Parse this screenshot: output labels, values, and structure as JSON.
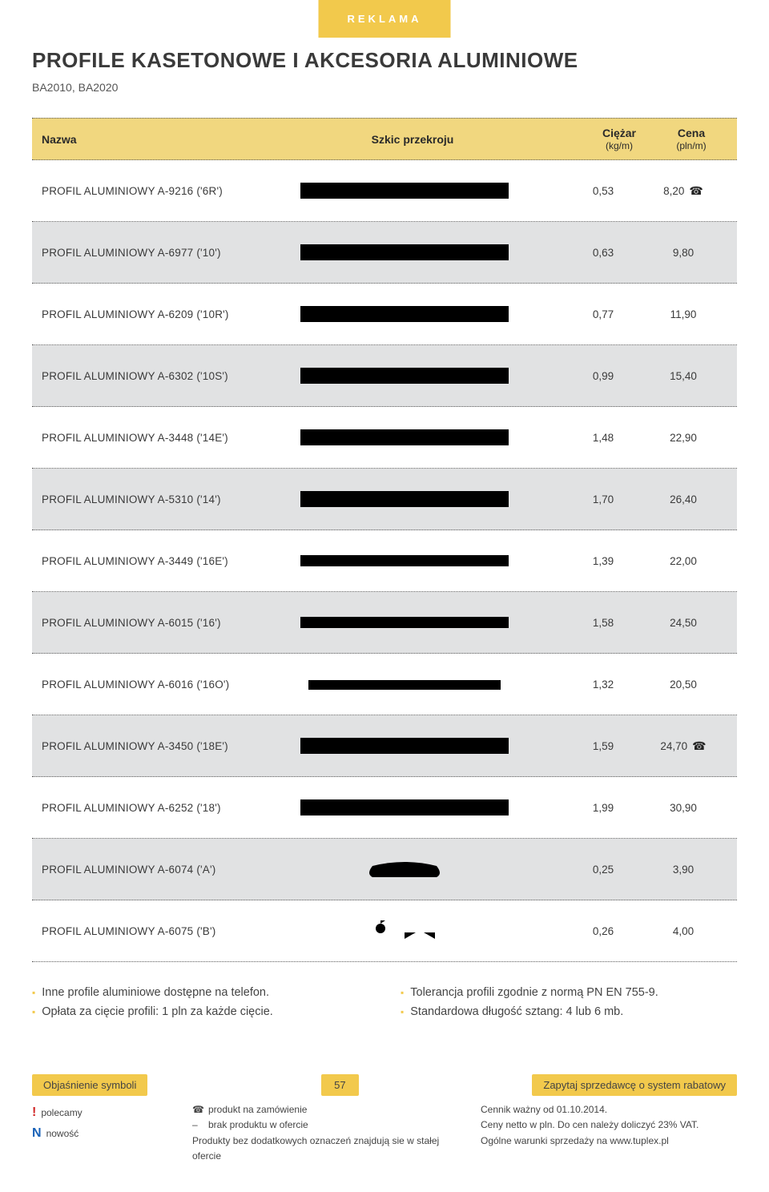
{
  "header": {
    "ad_label": "REKLAMA",
    "title": "PROFILE KASETONOWE I AKCESORIA ALUMINIOWE",
    "subcodes": "BA2010, BA2020"
  },
  "table": {
    "columns": {
      "name": "Nazwa",
      "sketch": "Szkic przekroju",
      "weight": "Ciężar",
      "weight_unit": "(kg/m)",
      "price": "Cena",
      "price_unit": "(pln/m)"
    },
    "rows": [
      {
        "name": "PROFIL ALUMINIOWY A-9216 ('6R')",
        "weight": "0,53",
        "price": "8,20",
        "phone": true,
        "alt": false,
        "svg": "p6r"
      },
      {
        "name": "PROFIL ALUMINIOWY A-6977 ('10')",
        "weight": "0,63",
        "price": "9,80",
        "phone": false,
        "alt": true,
        "svg": "p10"
      },
      {
        "name": "PROFIL ALUMINIOWY A-6209 ('10R')",
        "weight": "0,77",
        "price": "11,90",
        "phone": false,
        "alt": false,
        "svg": "p10r"
      },
      {
        "name": "PROFIL ALUMINIOWY A-6302 ('10S')",
        "weight": "0,99",
        "price": "15,40",
        "phone": false,
        "alt": true,
        "svg": "p10s"
      },
      {
        "name": "PROFIL ALUMINIOWY A-3448 ('14E')",
        "weight": "1,48",
        "price": "22,90",
        "phone": false,
        "alt": false,
        "svg": "p14e"
      },
      {
        "name": "PROFIL ALUMINIOWY A-5310 ('14')",
        "weight": "1,70",
        "price": "26,40",
        "phone": false,
        "alt": true,
        "svg": "p14"
      },
      {
        "name": "PROFIL ALUMINIOWY A-3449 ('16E')",
        "weight": "1,39",
        "price": "22,00",
        "phone": false,
        "alt": false,
        "svg": "p16e"
      },
      {
        "name": "PROFIL ALUMINIOWY A-6015 ('16')",
        "weight": "1,58",
        "price": "24,50",
        "phone": false,
        "alt": true,
        "svg": "p16"
      },
      {
        "name": "PROFIL ALUMINIOWY A-6016 ('16O')",
        "weight": "1,32",
        "price": "20,50",
        "phone": false,
        "alt": false,
        "svg": "p16o"
      },
      {
        "name": "PROFIL ALUMINIOWY A-3450 ('18E')",
        "weight": "1,59",
        "price": "24,70",
        "phone": true,
        "alt": true,
        "svg": "p18e"
      },
      {
        "name": "PROFIL ALUMINIOWY A-6252 ('18')",
        "weight": "1,99",
        "price": "30,90",
        "phone": false,
        "alt": false,
        "svg": "p18"
      },
      {
        "name": "PROFIL ALUMINIOWY A-6074 ('A')",
        "weight": "0,25",
        "price": "3,90",
        "phone": false,
        "alt": true,
        "svg": "pa"
      },
      {
        "name": "PROFIL ALUMINIOWY A-6075 ('B')",
        "weight": "0,26",
        "price": "4,00",
        "phone": false,
        "alt": false,
        "svg": "pb"
      }
    ]
  },
  "notes": [
    "Inne profile aluminiowe dostępne na telefon.",
    "Tolerancja profili zgodnie z normą PN EN 755-9.",
    "Opłata za cięcie profili: 1 pln za każde cięcie.",
    "Standardowa długość sztang: 4 lub 6 mb."
  ],
  "footer": {
    "left_tab": "Objaśnienie symboli",
    "page_number": "57",
    "right_tab": "Zapytaj sprzedawcę o system rabatowy",
    "legend_left": {
      "recommend": "polecamy",
      "novelty": "nowość"
    },
    "legend_mid": {
      "phone": "produkt na zamówienie",
      "dash": "brak produktu w ofercie",
      "line3": "Produkty bez dodatkowych oznaczeń znajdują sie w stałej ofercie"
    },
    "legend_right": {
      "line1": "Cennik ważny od 01.10.2014.",
      "line2": "Ceny netto w pln. Do cen należy doliczyć 23% VAT.",
      "line3": "Ogólne warunki sprzedaży na www.tuplex.pl"
    }
  },
  "colors": {
    "accent": "#f2c94c",
    "rowAlt": "#e1e2e3",
    "text": "#3a3a3a",
    "dotted": "#5a5a5a"
  }
}
